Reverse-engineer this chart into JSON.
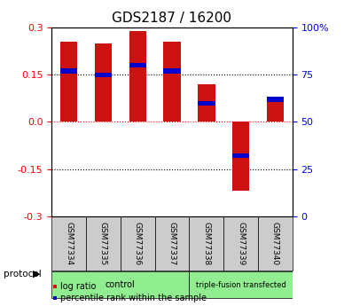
{
  "title": "GDS2187 / 16200",
  "samples": [
    "GSM77334",
    "GSM77335",
    "GSM77336",
    "GSM77337",
    "GSM77338",
    "GSM77339",
    "GSM77340"
  ],
  "log_ratios": [
    0.255,
    0.25,
    0.29,
    0.255,
    0.12,
    -0.22,
    0.08
  ],
  "percentiles": [
    0.77,
    0.75,
    0.8,
    0.77,
    0.6,
    0.32,
    0.62
  ],
  "ylim": [
    -0.3,
    0.3
  ],
  "y_left_ticks": [
    0.3,
    0.15,
    0.0,
    -0.15,
    -0.3
  ],
  "y_right_ticks": [
    100,
    75,
    50,
    25,
    0
  ],
  "protocol_groups": [
    {
      "label": "control",
      "start": 0,
      "end": 4,
      "color": "#90EE90"
    },
    {
      "label": "triple-fusion transfected",
      "start": 4,
      "end": 7,
      "color": "#90EE90"
    }
  ],
  "bar_color": "#CC1111",
  "percentile_color": "#0000CC",
  "bar_width": 0.5,
  "dotted_lines": [
    0.15,
    0.0,
    -0.15
  ],
  "legend_items": [
    {
      "label": "log ratio",
      "color": "#CC1111"
    },
    {
      "label": "percentile rank within the sample",
      "color": "#0000CC"
    }
  ],
  "title_fontsize": 11,
  "tick_fontsize": 8,
  "label_fontsize": 8,
  "bg_color": "#FFFFFF",
  "plot_bg_color": "#FFFFFF",
  "sample_box_color": "#CCCCCC",
  "protocol_label": "protocol"
}
